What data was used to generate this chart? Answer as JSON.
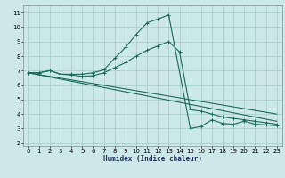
{
  "xlabel": "Humidex (Indice chaleur)",
  "xlim": [
    -0.5,
    23.5
  ],
  "ylim": [
    1.8,
    11.5
  ],
  "xticks": [
    0,
    1,
    2,
    3,
    4,
    5,
    6,
    7,
    8,
    9,
    10,
    11,
    12,
    13,
    14,
    15,
    16,
    17,
    18,
    19,
    20,
    21,
    22,
    23
  ],
  "yticks": [
    2,
    3,
    4,
    5,
    6,
    7,
    8,
    9,
    10,
    11
  ],
  "bg_color": "#cce8e8",
  "grid_color": "#aacfcf",
  "line_color": "#1a6b5a",
  "line1_x": [
    0,
    1,
    2,
    3,
    4,
    5,
    6,
    7,
    8,
    9,
    10,
    11,
    12,
    13,
    15,
    16,
    17,
    18,
    19,
    20,
    21,
    22,
    23
  ],
  "line1_y": [
    6.85,
    6.85,
    7.0,
    6.75,
    6.75,
    6.75,
    6.85,
    7.05,
    7.85,
    8.6,
    9.5,
    10.3,
    10.55,
    10.85,
    3.0,
    3.15,
    3.6,
    3.35,
    3.3,
    3.5,
    3.3,
    3.25,
    3.2
  ],
  "line2_x": [
    0,
    1,
    2,
    3,
    4,
    5,
    6,
    7,
    8,
    9,
    10,
    11,
    12,
    13,
    14,
    15,
    16,
    17,
    18,
    19,
    20,
    21,
    22,
    23
  ],
  "line2_y": [
    6.85,
    6.85,
    7.0,
    6.75,
    6.7,
    6.6,
    6.65,
    6.85,
    7.2,
    7.55,
    8.0,
    8.4,
    8.7,
    9.0,
    8.3,
    4.3,
    4.2,
    4.0,
    3.8,
    3.7,
    3.6,
    3.5,
    3.4,
    3.3
  ],
  "line3_x": [
    0,
    23
  ],
  "line3_y": [
    6.85,
    3.5
  ],
  "line4_x": [
    0,
    23
  ],
  "line4_y": [
    6.85,
    4.0
  ]
}
